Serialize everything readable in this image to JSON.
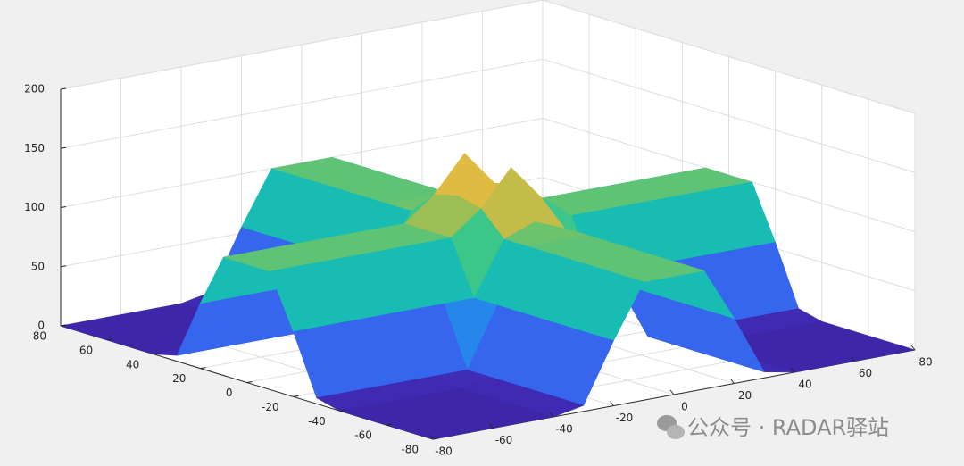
{
  "chart_data": {
    "type": "surface",
    "x": [
      -80,
      -70,
      -60,
      -50,
      -40,
      -30,
      -20,
      -10,
      0,
      10,
      20,
      30,
      40,
      50,
      60,
      70,
      80
    ],
    "y": [
      -80,
      -70,
      -60,
      -50,
      -40,
      -30,
      -20,
      -10,
      0,
      10,
      20,
      30,
      40,
      50,
      60,
      70,
      80
    ],
    "z": [
      [
        0,
        0,
        0,
        0,
        0,
        5,
        55,
        100,
        100,
        100,
        55,
        5,
        0,
        0,
        0,
        0,
        0
      ],
      [
        0,
        0,
        0,
        0,
        0,
        5,
        55,
        100,
        100,
        100,
        55,
        5,
        0,
        0,
        0,
        0,
        0
      ],
      [
        0,
        0,
        0,
        0,
        0,
        5,
        55,
        100,
        100,
        100,
        55,
        5,
        0,
        0,
        0,
        0,
        0
      ],
      [
        0,
        0,
        0,
        0,
        0,
        5,
        55,
        100,
        100,
        100,
        55,
        5,
        0,
        0,
        0,
        0,
        0
      ],
      [
        0,
        0,
        0,
        0,
        0,
        5,
        55,
        100,
        100,
        100,
        55,
        5,
        0,
        0,
        0,
        0,
        0
      ],
      [
        5,
        5,
        5,
        5,
        5,
        5,
        55,
        100,
        100,
        100,
        55,
        5,
        5,
        5,
        5,
        5,
        5
      ],
      [
        55,
        55,
        55,
        55,
        55,
        55,
        55,
        100,
        110,
        100,
        55,
        55,
        55,
        55,
        55,
        55,
        55
      ],
      [
        100,
        100,
        100,
        100,
        100,
        100,
        100,
        120,
        150,
        120,
        100,
        100,
        100,
        100,
        100,
        100,
        100
      ],
      [
        100,
        100,
        100,
        100,
        100,
        100,
        100,
        125,
        110,
        125,
        100,
        100,
        100,
        100,
        100,
        100,
        100
      ],
      [
        100,
        100,
        100,
        100,
        100,
        100,
        100,
        120,
        150,
        120,
        100,
        100,
        100,
        100,
        100,
        100,
        100
      ],
      [
        55,
        55,
        55,
        55,
        55,
        55,
        55,
        100,
        110,
        100,
        55,
        55,
        55,
        55,
        55,
        55,
        55
      ],
      [
        5,
        5,
        5,
        5,
        5,
        5,
        55,
        100,
        100,
        100,
        55,
        5,
        5,
        5,
        5,
        5,
        5
      ],
      [
        0,
        0,
        0,
        0,
        0,
        5,
        55,
        100,
        100,
        100,
        55,
        5,
        0,
        0,
        0,
        0,
        0
      ],
      [
        0,
        0,
        0,
        0,
        0,
        5,
        55,
        100,
        100,
        100,
        55,
        5,
        0,
        0,
        0,
        0,
        0
      ],
      [
        0,
        0,
        0,
        0,
        0,
        5,
        55,
        100,
        100,
        100,
        55,
        5,
        0,
        0,
        0,
        0,
        0
      ],
      [
        0,
        0,
        0,
        0,
        0,
        5,
        55,
        100,
        100,
        100,
        55,
        5,
        0,
        0,
        0,
        0,
        0
      ],
      [
        0,
        0,
        0,
        0,
        0,
        5,
        55,
        100,
        100,
        100,
        55,
        5,
        0,
        0,
        0,
        0,
        0
      ]
    ],
    "xlim": [
      -80,
      80
    ],
    "ylim": [
      -80,
      80
    ],
    "zlim": [
      0,
      200
    ],
    "xticks": [
      -80,
      -60,
      -40,
      -20,
      0,
      20,
      40,
      60,
      80
    ],
    "yticks": [
      -80,
      -60,
      -40,
      -20,
      0,
      20,
      40,
      60,
      80
    ],
    "zticks": [
      0,
      50,
      100,
      150,
      200
    ],
    "grid": true,
    "colormap": [
      "#3e26a8",
      "#4746eb",
      "#2c7cf0",
      "#1aa1d9",
      "#12bab8",
      "#3dc689",
      "#a3bd50",
      "#f5ba3c",
      "#f9fa15"
    ],
    "watermark": "公众号 · RADAR驿站"
  }
}
